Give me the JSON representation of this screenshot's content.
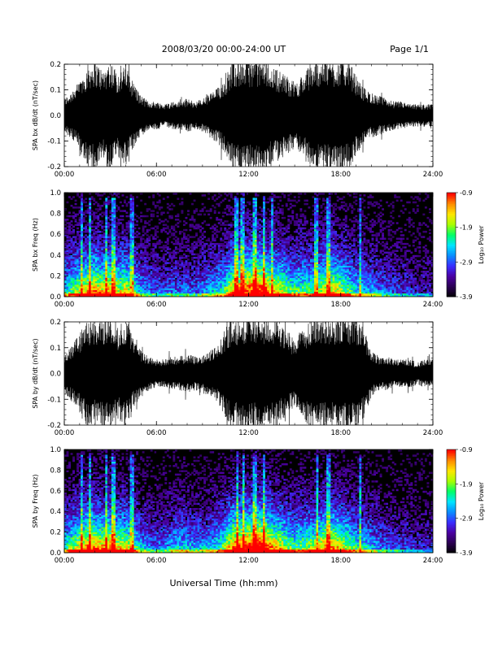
{
  "header": {
    "title": "2008/03/20  00:00-24:00 UT",
    "page": "Page 1/1"
  },
  "footer": {
    "xlabel": "Universal Time (hh:mm)"
  },
  "colors": {
    "trace": "#000000",
    "colormap": [
      "#000000",
      "#2a0050",
      "#4b00a0",
      "#3a2cff",
      "#0a8cff",
      "#00e5ff",
      "#00ff66",
      "#a8ff00",
      "#ffe600",
      "#ff8a00",
      "#ff0000"
    ]
  },
  "colorbar": {
    "label": "Log₁₀ Power",
    "ticks": [
      "-0.9",
      "-1.9",
      "-2.9",
      "-3.9"
    ]
  },
  "chart_data": [
    {
      "type": "line",
      "ylabel": "SPA bx dB/dt (nT/sec)",
      "xlim": [
        0,
        24
      ],
      "ylim": [
        -0.2,
        0.2
      ],
      "xticks": [
        "00:00",
        "06:00",
        "12:00",
        "18:00",
        "24:00"
      ],
      "yticks": [
        "0.2",
        "0.1",
        "0.0",
        "-0.1",
        "-0.2"
      ],
      "series": [
        {
          "x": [
            0,
            0.5,
            1,
            1.5,
            2,
            2.5,
            3,
            3.5,
            4,
            4.5,
            5,
            5.5,
            6,
            6.5,
            7,
            7.5,
            8,
            8.5,
            9,
            9.5,
            10,
            10.5,
            11,
            11.5,
            12,
            12.5,
            13,
            13.5,
            14,
            14.5,
            15,
            15.5,
            16,
            16.5,
            17,
            17.5,
            18,
            18.5,
            19,
            19.5,
            20,
            20.5,
            21,
            21.5,
            22,
            22.5,
            23,
            23.5,
            24
          ],
          "amplitude": [
            0.06,
            0.09,
            0.12,
            0.18,
            0.2,
            0.16,
            0.2,
            0.15,
            0.18,
            0.12,
            0.07,
            0.05,
            0.05,
            0.04,
            0.05,
            0.05,
            0.06,
            0.05,
            0.06,
            0.08,
            0.1,
            0.14,
            0.2,
            0.2,
            0.2,
            0.2,
            0.2,
            0.18,
            0.16,
            0.14,
            0.12,
            0.14,
            0.18,
            0.2,
            0.2,
            0.2,
            0.2,
            0.2,
            0.14,
            0.1,
            0.08,
            0.07,
            0.06,
            0.05,
            0.05,
            0.04,
            0.04,
            0.04,
            0.04
          ]
        }
      ]
    },
    {
      "type": "heatmap",
      "ylabel": "SPA bx Freq (Hz)",
      "xlim": [
        0,
        24
      ],
      "ylim": [
        0,
        1
      ],
      "xticks": [
        "00:00",
        "06:00",
        "12:00",
        "18:00",
        "24:00"
      ],
      "yticks": [
        "1.0",
        "0.8",
        "0.6",
        "0.4",
        "0.2",
        "0.0"
      ],
      "zlim": [
        -3.9,
        -0.9
      ],
      "activity": [
        0.45,
        0.55,
        0.65,
        0.75,
        0.8,
        0.72,
        0.78,
        0.65,
        0.7,
        0.55,
        0.4,
        0.32,
        0.3,
        0.28,
        0.32,
        0.3,
        0.33,
        0.3,
        0.35,
        0.4,
        0.45,
        0.55,
        0.8,
        0.85,
        0.88,
        0.9,
        0.92,
        0.75,
        0.7,
        0.6,
        0.55,
        0.55,
        0.58,
        0.62,
        0.7,
        0.72,
        0.65,
        0.55,
        0.45,
        0.42,
        0.4,
        0.35,
        0.3,
        0.28,
        0.25,
        0.22,
        0.2,
        0.2,
        0.2
      ],
      "line_times": [
        1.1,
        1.7,
        2.7,
        3.2,
        4.4,
        11.2,
        11.6,
        12.4,
        13.0,
        13.5,
        16.4,
        17.1,
        17.3,
        19.3
      ]
    },
    {
      "type": "line",
      "ylabel": "SPA by dB/dt (nT/sec)",
      "xlim": [
        0,
        24
      ],
      "ylim": [
        -0.2,
        0.2
      ],
      "xticks": [
        "00:00",
        "06:00",
        "12:00",
        "18:00",
        "24:00"
      ],
      "yticks": [
        "0.2",
        "0.1",
        "0.0",
        "-0.1",
        "-0.2"
      ],
      "series": [
        {
          "x": [
            0,
            0.5,
            1,
            1.5,
            2,
            2.5,
            3,
            3.5,
            4,
            4.5,
            5,
            5.5,
            6,
            6.5,
            7,
            7.5,
            8,
            8.5,
            9,
            9.5,
            10,
            10.5,
            11,
            11.5,
            12,
            12.5,
            13,
            13.5,
            14,
            14.5,
            15,
            15.5,
            16,
            16.5,
            17,
            17.5,
            18,
            18.5,
            19,
            19.5,
            20,
            20.5,
            21,
            21.5,
            22,
            22.5,
            23,
            23.5,
            24
          ],
          "amplitude": [
            0.07,
            0.1,
            0.14,
            0.2,
            0.18,
            0.2,
            0.2,
            0.16,
            0.2,
            0.12,
            0.08,
            0.06,
            0.05,
            0.05,
            0.06,
            0.06,
            0.07,
            0.06,
            0.07,
            0.08,
            0.1,
            0.16,
            0.2,
            0.2,
            0.2,
            0.2,
            0.2,
            0.2,
            0.17,
            0.15,
            0.12,
            0.15,
            0.2,
            0.2,
            0.2,
            0.2,
            0.2,
            0.2,
            0.2,
            0.16,
            0.08,
            0.06,
            0.06,
            0.05,
            0.05,
            0.05,
            0.04,
            0.05,
            0.05
          ]
        }
      ]
    },
    {
      "type": "heatmap",
      "ylabel": "SPA by Freq (Hz)",
      "xlim": [
        0,
        24
      ],
      "ylim": [
        0,
        1
      ],
      "xticks": [
        "00:00",
        "06:00",
        "12:00",
        "18:00",
        "24:00"
      ],
      "yticks": [
        "1.0",
        "0.8",
        "0.6",
        "0.4",
        "0.2",
        "0.0"
      ],
      "zlim": [
        -3.9,
        -0.9
      ],
      "activity": [
        0.5,
        0.6,
        0.7,
        0.8,
        0.82,
        0.75,
        0.8,
        0.7,
        0.72,
        0.58,
        0.42,
        0.35,
        0.33,
        0.32,
        0.4,
        0.45,
        0.42,
        0.38,
        0.4,
        0.42,
        0.48,
        0.6,
        0.85,
        0.9,
        0.92,
        0.95,
        0.95,
        0.8,
        0.72,
        0.62,
        0.55,
        0.58,
        0.62,
        0.68,
        0.78,
        0.8,
        0.7,
        0.6,
        0.5,
        0.45,
        0.42,
        0.36,
        0.3,
        0.28,
        0.26,
        0.24,
        0.22,
        0.22,
        0.22
      ],
      "line_times": [
        1.1,
        1.7,
        2.7,
        3.2,
        4.4,
        11.3,
        11.7,
        12.4,
        13.0,
        16.5,
        17.2,
        19.3
      ]
    }
  ]
}
